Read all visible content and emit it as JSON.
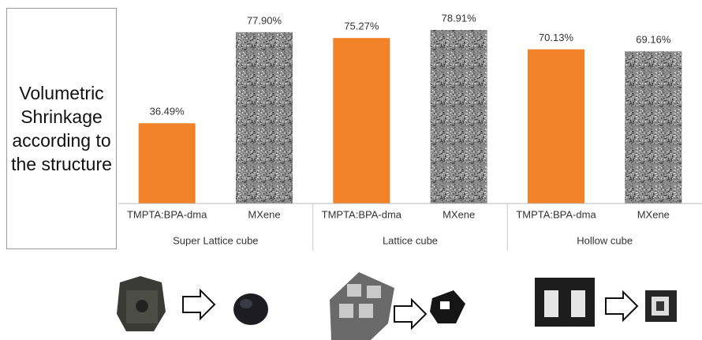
{
  "chart_data": {
    "type": "bar",
    "title": "Volumetric Shrinkage according to the structure",
    "categories": [
      "TMPTA:BPA-dma",
      "MXene",
      "TMPTA:BPA-dma",
      "MXene",
      "TMPTA:BPA-dma",
      "MXene"
    ],
    "groups": [
      "Super Lattice cube",
      "Lattice cube",
      "Hollow cube"
    ],
    "values": [
      36.49,
      77.9,
      75.27,
      78.91,
      70.13,
      69.16
    ],
    "value_labels": [
      "36.49%",
      "77.90%",
      "75.27%",
      "78.91%",
      "70.13%",
      "69.16%"
    ],
    "colors": [
      "#f28227",
      "#9a9a9a",
      "#f28227",
      "#9a9a9a",
      "#f28227",
      "#9a9a9a"
    ],
    "textured": [
      false,
      true,
      false,
      true,
      false,
      true
    ]
  }
}
